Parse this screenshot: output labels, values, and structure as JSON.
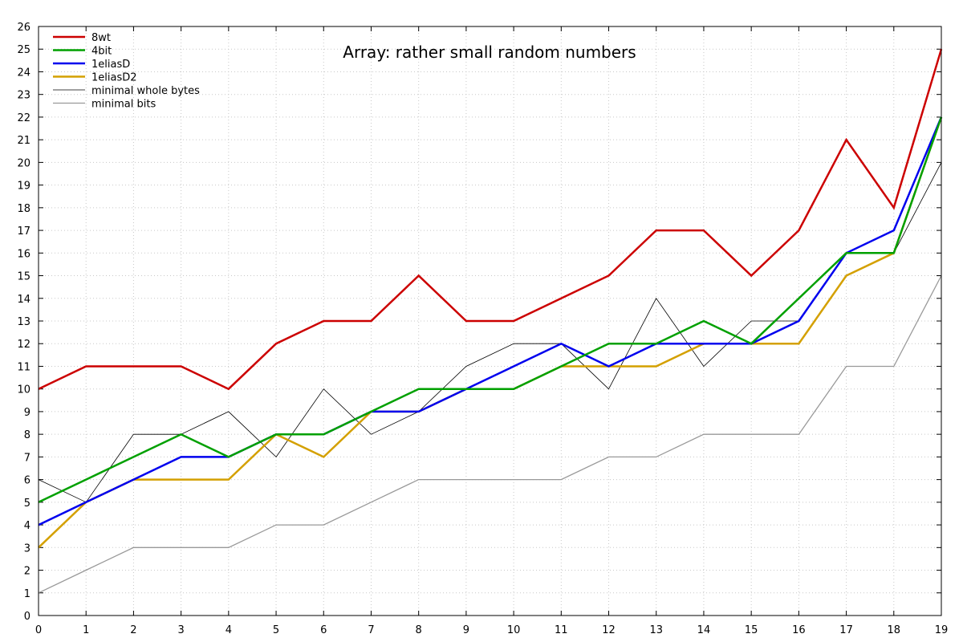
{
  "chart_data": {
    "type": "line",
    "title": "Array: rather small random numbers",
    "xlabel": "",
    "ylabel": "",
    "x": [
      0,
      1,
      2,
      3,
      4,
      5,
      6,
      7,
      8,
      9,
      10,
      11,
      12,
      13,
      14,
      15,
      16,
      17,
      18,
      19
    ],
    "xlim": [
      0,
      19
    ],
    "ylim": [
      0,
      26
    ],
    "x_ticks": [
      0,
      1,
      2,
      3,
      4,
      5,
      6,
      7,
      8,
      9,
      10,
      11,
      12,
      13,
      14,
      15,
      16,
      17,
      18,
      19
    ],
    "y_ticks": [
      0,
      1,
      2,
      3,
      4,
      5,
      6,
      7,
      8,
      9,
      10,
      11,
      12,
      13,
      14,
      15,
      16,
      17,
      18,
      19,
      20,
      21,
      22,
      23,
      24,
      25,
      26
    ],
    "grid": "dotted",
    "legend_position": "top-left",
    "series": [
      {
        "name": "8wt",
        "color": "#cc0000",
        "width": 2.5,
        "values": [
          10,
          11,
          11,
          11,
          10,
          12,
          13,
          13,
          15,
          13,
          13,
          14,
          15,
          17,
          17,
          15,
          17,
          21,
          18,
          25
        ]
      },
      {
        "name": "4bit",
        "color": "#00a000",
        "width": 2.5,
        "values": [
          5,
          6,
          7,
          8,
          7,
          8,
          8,
          9,
          10,
          10,
          10,
          11,
          12,
          12,
          13,
          12,
          14,
          16,
          16,
          22
        ]
      },
      {
        "name": "1eliasD",
        "color": "#0000ee",
        "width": 2.5,
        "values": [
          4,
          5,
          6,
          7,
          7,
          8,
          8,
          9,
          9,
          10,
          11,
          12,
          11,
          12,
          12,
          12,
          13,
          16,
          17,
          22
        ]
      },
      {
        "name": "1eliasD2",
        "color": "#d4a000",
        "width": 2.5,
        "values": [
          3,
          5,
          6,
          6,
          6,
          8,
          7,
          9,
          9,
          10,
          10,
          11,
          11,
          11,
          12,
          12,
          12,
          15,
          16,
          22
        ]
      },
      {
        "name": "minimal whole bytes",
        "color": "#000000",
        "width": 0.8,
        "values": [
          6,
          5,
          8,
          8,
          9,
          7,
          10,
          8,
          9,
          11,
          12,
          12,
          10,
          14,
          11,
          13,
          13,
          16,
          16,
          20
        ]
      },
      {
        "name": "minimal bits",
        "color": "#999999",
        "width": 1.3,
        "values": [
          1,
          2,
          3,
          3,
          3,
          4,
          4,
          5,
          6,
          6,
          6,
          6,
          7,
          7,
          8,
          8,
          8,
          11,
          11,
          15
        ]
      }
    ]
  }
}
